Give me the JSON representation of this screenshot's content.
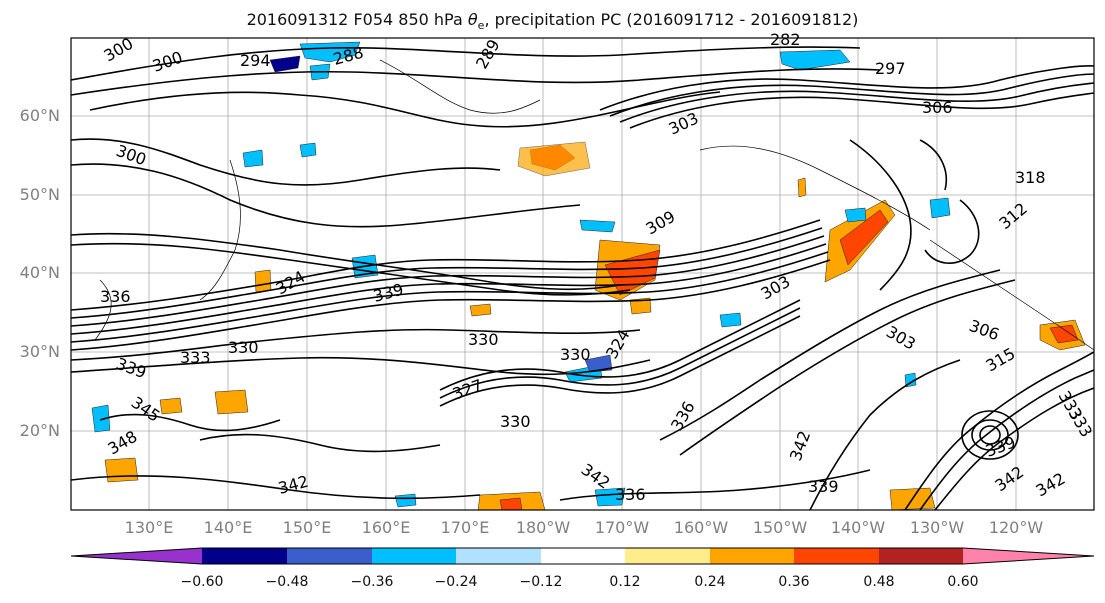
{
  "title": {
    "prefix": "2016091312 F054 850 hPa ",
    "theta": "θ",
    "sub": "e",
    "suffix": ", precipitation PC (2016091712 - 2016091812)"
  },
  "lat_labels": [
    "60°N",
    "50°N",
    "40°N",
    "30°N",
    "20°N"
  ],
  "lon_labels": [
    "130°E",
    "140°E",
    "150°E",
    "160°E",
    "170°E",
    "180°W",
    "170°W",
    "160°W",
    "150°W",
    "140°W",
    "130°W",
    "120°W"
  ],
  "contour_labels": [
    "300",
    "294",
    "288",
    "282",
    "297",
    "300",
    "306",
    "303",
    "289",
    "300",
    "318",
    "312",
    "303",
    "309",
    "324",
    "339",
    "336",
    "333",
    "330",
    "339",
    "345",
    "330",
    "330",
    "327",
    "348",
    "342",
    "330",
    "342",
    "336",
    "342",
    "339",
    "333",
    "324",
    "336",
    "342",
    "339",
    "306",
    "342",
    "303",
    "315",
    "333"
  ],
  "colorbar": {
    "ticks": [
      "−0.60",
      "−0.48",
      "−0.36",
      "−0.24",
      "−0.12",
      "0.12",
      "0.24",
      "0.36",
      "0.48",
      "0.60"
    ],
    "colors": [
      "#9932cc",
      "#00008b",
      "#3a5fcd",
      "#00bfff",
      "#b0e2ff",
      "#ffffff",
      "#ffec8b",
      "#ffa500",
      "#ff4500",
      "#b22222",
      "#ff82ab"
    ]
  }
}
